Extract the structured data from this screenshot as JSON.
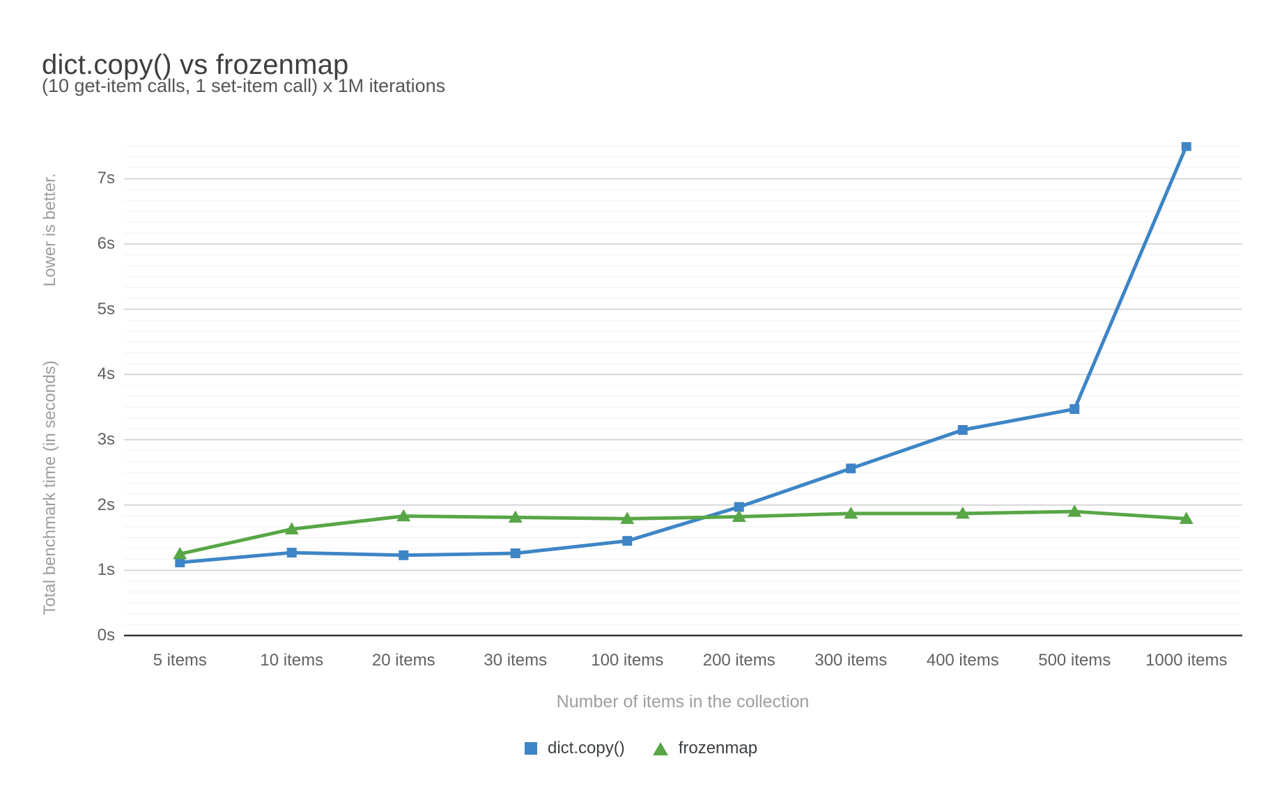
{
  "chart_data": {
    "type": "line",
    "title": "dict.copy() vs frozenmap",
    "subtitle": "(10 get-item calls, 1 set-item call) x 1M iterations",
    "xlabel": "Number of items in the collection",
    "ylabel": "Total benchmark time (in seconds)",
    "ylabel_note": "Lower is better.",
    "categories": [
      "5 items",
      "10 items",
      "20 items",
      "30 items",
      "100 items",
      "200 items",
      "300 items",
      "400 items",
      "500 items",
      "1000 items"
    ],
    "series": [
      {
        "name": "dict.copy()",
        "marker": "square",
        "color": "#3d85c6",
        "values": [
          1.12,
          1.27,
          1.23,
          1.26,
          1.45,
          1.97,
          2.56,
          3.15,
          3.47,
          7.5
        ]
      },
      {
        "name": "frozenmap",
        "marker": "triangle",
        "color": "#58a646",
        "values": [
          1.25,
          1.63,
          1.83,
          1.81,
          1.79,
          1.82,
          1.87,
          1.87,
          1.9,
          1.79
        ]
      }
    ],
    "yticks": [
      "0s",
      "1s",
      "2s",
      "3s",
      "4s",
      "5s",
      "6s",
      "7s"
    ],
    "ylim": [
      0,
      7.56
    ],
    "minor_gridlines_per_major": 6,
    "grid": "horizontal major + minor",
    "legend_position": "bottom",
    "colors": {
      "major_gridline": "#cccccc",
      "minor_gridline": "#f2f2f2",
      "baseline": "#333333",
      "tick_text": "#616161",
      "axis_title_text": "#9e9e9e",
      "title_text": "#3f3f3f",
      "subtitle_text": "#555555"
    }
  }
}
